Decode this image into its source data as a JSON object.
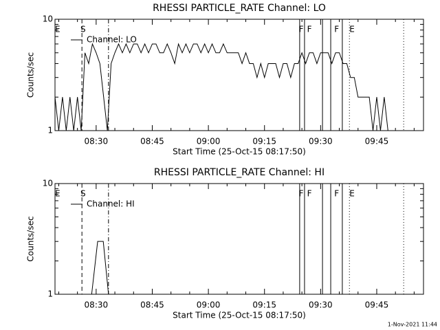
{
  "chart_data": [
    {
      "type": "line",
      "title": "RHESSI PARTICLE_RATE Channel: LO",
      "xlabel": "Start Time (25-Oct-15 08:17:50)",
      "ylabel": "Counts/sec",
      "xlim": [
        19,
        117.5
      ],
      "ylim": [
        1,
        10
      ],
      "ylog": true,
      "xticks": [
        {
          "value": 30,
          "label": "08:30"
        },
        {
          "value": 45,
          "label": "08:45"
        },
        {
          "value": 60,
          "label": "09:00"
        },
        {
          "value": 75,
          "label": "09:15"
        },
        {
          "value": 90,
          "label": "09:30"
        },
        {
          "value": 105,
          "label": "09:45"
        }
      ],
      "xminorticks": [
        20,
        25,
        35,
        40,
        50,
        55,
        65,
        70,
        80,
        85,
        95,
        100,
        110,
        115
      ],
      "yticks": [
        1,
        10
      ],
      "yminorticks": [
        2,
        3,
        4,
        5,
        6,
        7,
        8,
        9
      ],
      "flags": [
        {
          "label": "E",
          "x": 19.7
        },
        {
          "label": "S",
          "x": 26.5
        },
        {
          "label": "F",
          "x": 84.8
        },
        {
          "label": "F",
          "x": 87.0
        },
        {
          "label": "F",
          "x": 94.3
        },
        {
          "label": "E",
          "x": 98.4
        }
      ],
      "vlines": [
        {
          "x": 26.2,
          "style": "dashed"
        },
        {
          "x": 33.3,
          "style": "dashdot"
        },
        {
          "x": 84.4,
          "style": "solid"
        },
        {
          "x": 85.7,
          "style": "solid"
        },
        {
          "x": 90.5,
          "style": "solid"
        },
        {
          "x": 92.7,
          "style": "solid"
        },
        {
          "x": 95.8,
          "style": "solid"
        },
        {
          "x": 97.7,
          "style": "dotted"
        },
        {
          "x": 112.2,
          "style": "dotted"
        }
      ],
      "x": [
        19,
        20,
        21,
        22,
        23,
        24,
        25,
        26,
        27,
        28,
        29,
        30,
        31,
        32,
        33,
        34,
        35,
        36,
        37,
        38,
        39,
        40,
        41,
        42,
        43,
        44,
        45,
        46,
        47,
        48,
        49,
        50,
        51,
        52,
        53,
        54,
        55,
        56,
        57,
        58,
        59,
        60,
        61,
        62,
        63,
        64,
        65,
        66,
        67,
        68,
        69,
        70,
        71,
        72,
        73,
        74,
        75,
        76,
        77,
        78,
        79,
        80,
        81,
        82,
        83,
        84,
        85,
        86,
        87,
        88,
        89,
        90,
        91,
        92,
        93,
        94,
        95,
        96,
        97,
        98,
        99,
        100,
        101,
        102,
        103,
        104,
        105,
        106,
        107,
        108,
        109,
        110
      ],
      "series": [
        {
          "name": "Channel: LO",
          "color": "#000000",
          "values": [
            2,
            1,
            2,
            1,
            2,
            1,
            2,
            1,
            5,
            4,
            6,
            5,
            4,
            2,
            1,
            4,
            5,
            6,
            5,
            6,
            5,
            6,
            6,
            5,
            6,
            5,
            6,
            6,
            5,
            5,
            6,
            5,
            4,
            6,
            5,
            6,
            5,
            6,
            6,
            5,
            6,
            5,
            6,
            5,
            5,
            6,
            5,
            5,
            5,
            5,
            4,
            5,
            4,
            4,
            3,
            4,
            3,
            4,
            4,
            4,
            3,
            4,
            4,
            3,
            4,
            4,
            5,
            4,
            5,
            5,
            4,
            5,
            5,
            5,
            4,
            5,
            5,
            4,
            4,
            3,
            3,
            2,
            2,
            2,
            2,
            1,
            2,
            1,
            2,
            1,
            1,
            1
          ]
        }
      ]
    },
    {
      "type": "line",
      "title": "RHESSI PARTICLE_RATE Channel: HI",
      "xlabel": "Start Time (25-Oct-15 08:17:50)",
      "ylabel": "Counts/sec",
      "xlim": [
        19,
        117.5
      ],
      "ylim": [
        1,
        10
      ],
      "ylog": true,
      "xticks": [
        {
          "value": 30,
          "label": "08:30"
        },
        {
          "value": 45,
          "label": "08:45"
        },
        {
          "value": 60,
          "label": "09:00"
        },
        {
          "value": 75,
          "label": "09:15"
        },
        {
          "value": 90,
          "label": "09:30"
        },
        {
          "value": 105,
          "label": "09:45"
        }
      ],
      "xminorticks": [
        20,
        25,
        35,
        40,
        50,
        55,
        65,
        70,
        80,
        85,
        95,
        100,
        110,
        115
      ],
      "yticks": [
        1,
        10
      ],
      "yminorticks": [
        2,
        3,
        4,
        5,
        6,
        7,
        8,
        9
      ],
      "flags": [
        {
          "label": "E",
          "x": 19.7
        },
        {
          "label": "S",
          "x": 26.5
        },
        {
          "label": "F",
          "x": 84.8
        },
        {
          "label": "F",
          "x": 87.0
        },
        {
          "label": "F",
          "x": 94.3
        },
        {
          "label": "E",
          "x": 98.4
        }
      ],
      "vlines": [
        {
          "x": 26.2,
          "style": "dashed"
        },
        {
          "x": 33.3,
          "style": "dashdot"
        },
        {
          "x": 84.4,
          "style": "solid"
        },
        {
          "x": 85.7,
          "style": "solid"
        },
        {
          "x": 90.5,
          "style": "solid"
        },
        {
          "x": 92.7,
          "style": "solid"
        },
        {
          "x": 95.8,
          "style": "solid"
        },
        {
          "x": 97.7,
          "style": "dotted"
        },
        {
          "x": 112.2,
          "style": "dotted"
        }
      ],
      "x": [
        28.8,
        30.4,
        31.9,
        33.3
      ],
      "series": [
        {
          "name": "Channel: HI",
          "color": "#000000",
          "values": [
            1,
            3,
            3,
            1
          ]
        }
      ]
    }
  ],
  "footer": "1-Nov-2021 11:44"
}
